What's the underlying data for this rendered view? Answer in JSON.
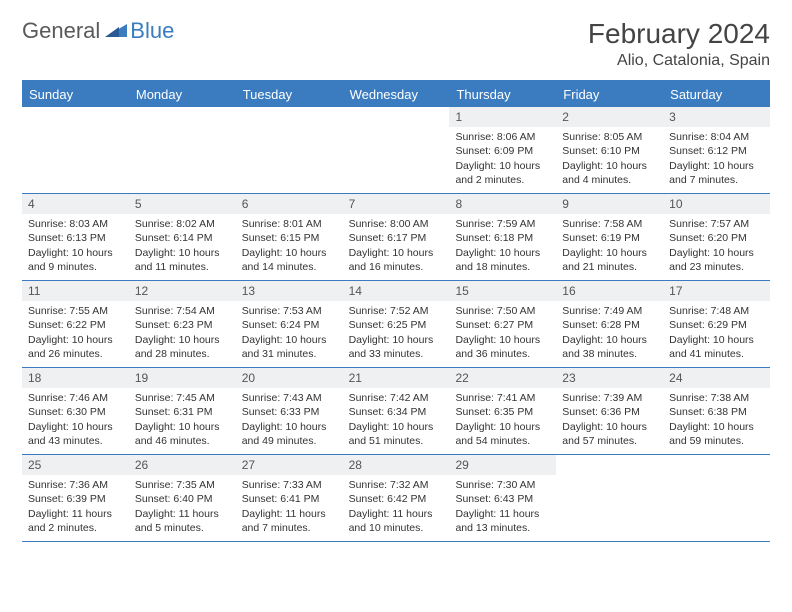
{
  "logo": {
    "text1": "General",
    "text2": "Blue"
  },
  "title": "February 2024",
  "location": "Alio, Catalonia, Spain",
  "colors": {
    "header_bg": "#3b7bbf",
    "header_text": "#ffffff",
    "daynum_bg": "#eef0f2",
    "border": "#3b7bbf"
  },
  "day_names": [
    "Sunday",
    "Monday",
    "Tuesday",
    "Wednesday",
    "Thursday",
    "Friday",
    "Saturday"
  ],
  "weeks": [
    [
      {
        "num": "",
        "lines": []
      },
      {
        "num": "",
        "lines": []
      },
      {
        "num": "",
        "lines": []
      },
      {
        "num": "",
        "lines": []
      },
      {
        "num": "1",
        "lines": [
          "Sunrise: 8:06 AM",
          "Sunset: 6:09 PM",
          "Daylight: 10 hours and 2 minutes."
        ]
      },
      {
        "num": "2",
        "lines": [
          "Sunrise: 8:05 AM",
          "Sunset: 6:10 PM",
          "Daylight: 10 hours and 4 minutes."
        ]
      },
      {
        "num": "3",
        "lines": [
          "Sunrise: 8:04 AM",
          "Sunset: 6:12 PM",
          "Daylight: 10 hours and 7 minutes."
        ]
      }
    ],
    [
      {
        "num": "4",
        "lines": [
          "Sunrise: 8:03 AM",
          "Sunset: 6:13 PM",
          "Daylight: 10 hours and 9 minutes."
        ]
      },
      {
        "num": "5",
        "lines": [
          "Sunrise: 8:02 AM",
          "Sunset: 6:14 PM",
          "Daylight: 10 hours and 11 minutes."
        ]
      },
      {
        "num": "6",
        "lines": [
          "Sunrise: 8:01 AM",
          "Sunset: 6:15 PM",
          "Daylight: 10 hours and 14 minutes."
        ]
      },
      {
        "num": "7",
        "lines": [
          "Sunrise: 8:00 AM",
          "Sunset: 6:17 PM",
          "Daylight: 10 hours and 16 minutes."
        ]
      },
      {
        "num": "8",
        "lines": [
          "Sunrise: 7:59 AM",
          "Sunset: 6:18 PM",
          "Daylight: 10 hours and 18 minutes."
        ]
      },
      {
        "num": "9",
        "lines": [
          "Sunrise: 7:58 AM",
          "Sunset: 6:19 PM",
          "Daylight: 10 hours and 21 minutes."
        ]
      },
      {
        "num": "10",
        "lines": [
          "Sunrise: 7:57 AM",
          "Sunset: 6:20 PM",
          "Daylight: 10 hours and 23 minutes."
        ]
      }
    ],
    [
      {
        "num": "11",
        "lines": [
          "Sunrise: 7:55 AM",
          "Sunset: 6:22 PM",
          "Daylight: 10 hours and 26 minutes."
        ]
      },
      {
        "num": "12",
        "lines": [
          "Sunrise: 7:54 AM",
          "Sunset: 6:23 PM",
          "Daylight: 10 hours and 28 minutes."
        ]
      },
      {
        "num": "13",
        "lines": [
          "Sunrise: 7:53 AM",
          "Sunset: 6:24 PM",
          "Daylight: 10 hours and 31 minutes."
        ]
      },
      {
        "num": "14",
        "lines": [
          "Sunrise: 7:52 AM",
          "Sunset: 6:25 PM",
          "Daylight: 10 hours and 33 minutes."
        ]
      },
      {
        "num": "15",
        "lines": [
          "Sunrise: 7:50 AM",
          "Sunset: 6:27 PM",
          "Daylight: 10 hours and 36 minutes."
        ]
      },
      {
        "num": "16",
        "lines": [
          "Sunrise: 7:49 AM",
          "Sunset: 6:28 PM",
          "Daylight: 10 hours and 38 minutes."
        ]
      },
      {
        "num": "17",
        "lines": [
          "Sunrise: 7:48 AM",
          "Sunset: 6:29 PM",
          "Daylight: 10 hours and 41 minutes."
        ]
      }
    ],
    [
      {
        "num": "18",
        "lines": [
          "Sunrise: 7:46 AM",
          "Sunset: 6:30 PM",
          "Daylight: 10 hours and 43 minutes."
        ]
      },
      {
        "num": "19",
        "lines": [
          "Sunrise: 7:45 AM",
          "Sunset: 6:31 PM",
          "Daylight: 10 hours and 46 minutes."
        ]
      },
      {
        "num": "20",
        "lines": [
          "Sunrise: 7:43 AM",
          "Sunset: 6:33 PM",
          "Daylight: 10 hours and 49 minutes."
        ]
      },
      {
        "num": "21",
        "lines": [
          "Sunrise: 7:42 AM",
          "Sunset: 6:34 PM",
          "Daylight: 10 hours and 51 minutes."
        ]
      },
      {
        "num": "22",
        "lines": [
          "Sunrise: 7:41 AM",
          "Sunset: 6:35 PM",
          "Daylight: 10 hours and 54 minutes."
        ]
      },
      {
        "num": "23",
        "lines": [
          "Sunrise: 7:39 AM",
          "Sunset: 6:36 PM",
          "Daylight: 10 hours and 57 minutes."
        ]
      },
      {
        "num": "24",
        "lines": [
          "Sunrise: 7:38 AM",
          "Sunset: 6:38 PM",
          "Daylight: 10 hours and 59 minutes."
        ]
      }
    ],
    [
      {
        "num": "25",
        "lines": [
          "Sunrise: 7:36 AM",
          "Sunset: 6:39 PM",
          "Daylight: 11 hours and 2 minutes."
        ]
      },
      {
        "num": "26",
        "lines": [
          "Sunrise: 7:35 AM",
          "Sunset: 6:40 PM",
          "Daylight: 11 hours and 5 minutes."
        ]
      },
      {
        "num": "27",
        "lines": [
          "Sunrise: 7:33 AM",
          "Sunset: 6:41 PM",
          "Daylight: 11 hours and 7 minutes."
        ]
      },
      {
        "num": "28",
        "lines": [
          "Sunrise: 7:32 AM",
          "Sunset: 6:42 PM",
          "Daylight: 11 hours and 10 minutes."
        ]
      },
      {
        "num": "29",
        "lines": [
          "Sunrise: 7:30 AM",
          "Sunset: 6:43 PM",
          "Daylight: 11 hours and 13 minutes."
        ]
      },
      {
        "num": "",
        "lines": []
      },
      {
        "num": "",
        "lines": []
      }
    ]
  ]
}
